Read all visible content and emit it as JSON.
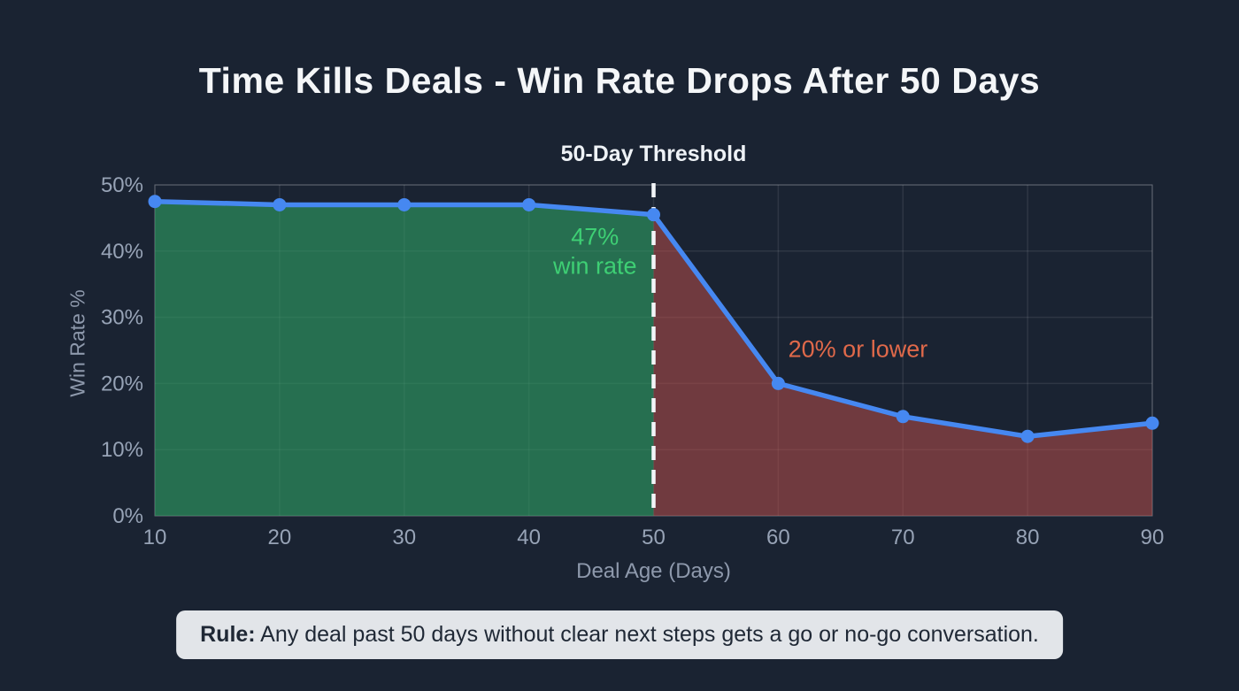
{
  "page": {
    "title": "Time Kills Deals - Win Rate Drops After 50 Days",
    "subtitle": "50-Day Threshold"
  },
  "rule_note": {
    "prefix": "Rule:",
    "text": " Any deal past 50 days without clear next steps gets a go or no-go conversation."
  },
  "chart_data": {
    "type": "line",
    "title": "Time Kills Deals - Win Rate Drops After 50 Days",
    "subtitle": "50-Day Threshold",
    "xlabel": "Deal Age (Days)",
    "ylabel": "Win Rate %",
    "x": [
      10,
      20,
      30,
      40,
      50,
      60,
      70,
      80,
      90
    ],
    "series": [
      {
        "name": "Win Rate",
        "values": [
          47.5,
          47,
          47,
          47,
          45.5,
          20,
          15,
          12,
          14
        ]
      }
    ],
    "xlim": [
      10,
      90
    ],
    "ylim": [
      0,
      50
    ],
    "x_ticks": [
      10,
      20,
      30,
      40,
      50,
      60,
      70,
      80,
      90
    ],
    "y_ticks": [
      0,
      10,
      20,
      30,
      40,
      50
    ],
    "y_tick_suffix": "%",
    "grid": true,
    "legend": "none",
    "threshold_x": 50,
    "annotations": [
      {
        "text_lines": [
          "47%",
          "win rate"
        ],
        "x": 45.3,
        "y": 41,
        "color": "#3ecf74",
        "align": "center"
      },
      {
        "text_lines": [
          "20% or lower"
        ],
        "x": 60.8,
        "y": 24,
        "color": "#e0694a",
        "align": "left"
      }
    ],
    "colors": {
      "line": "#4688f1",
      "point": "#4688f1",
      "area_before_threshold": "#2f9e63",
      "area_after_threshold": "#c0504a",
      "threshold_line": "#f2f5f8",
      "grid": "#ffffff",
      "axis_text": "#97a3b6",
      "background": "#1a2332"
    }
  }
}
